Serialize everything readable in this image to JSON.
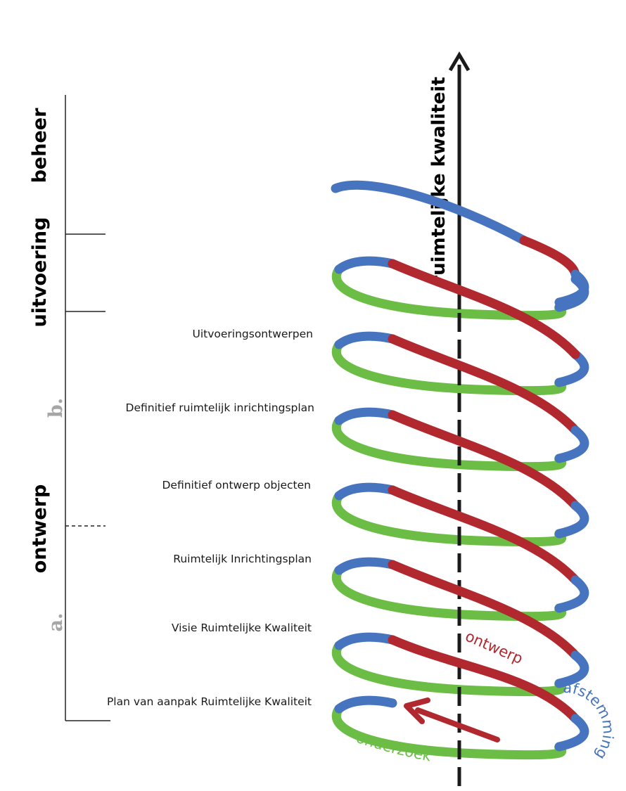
{
  "axis": {
    "label": "ruimtelijke kwaliteit"
  },
  "phases": {
    "beheer": "beheer",
    "uitvoering": "uitvoering",
    "ontwerp": "ontwerp"
  },
  "subphases": {
    "a": "a.",
    "b": "b."
  },
  "steps": [
    "Uitvoeringsontwerpen",
    "Definitief ruimtelijk inrichtingsplan",
    "Definitief ontwerp objecten",
    "Ruimtelijk Inrichtingsplan",
    "Visie Ruimtelijke Kwaliteit",
    "Plan van aanpak Ruimtelijke Kwaliteit"
  ],
  "spiral_labels": {
    "ontwerp": "ontwerp",
    "afstemming": "afstemming",
    "onderzoek": "onderzoek"
  },
  "colors": {
    "onderzoek": "#6bbd45",
    "ontwerp": "#b1282e",
    "afstemming": "#4674be",
    "axis": "#1a1a1a",
    "subphase": "#a6a6a6"
  }
}
